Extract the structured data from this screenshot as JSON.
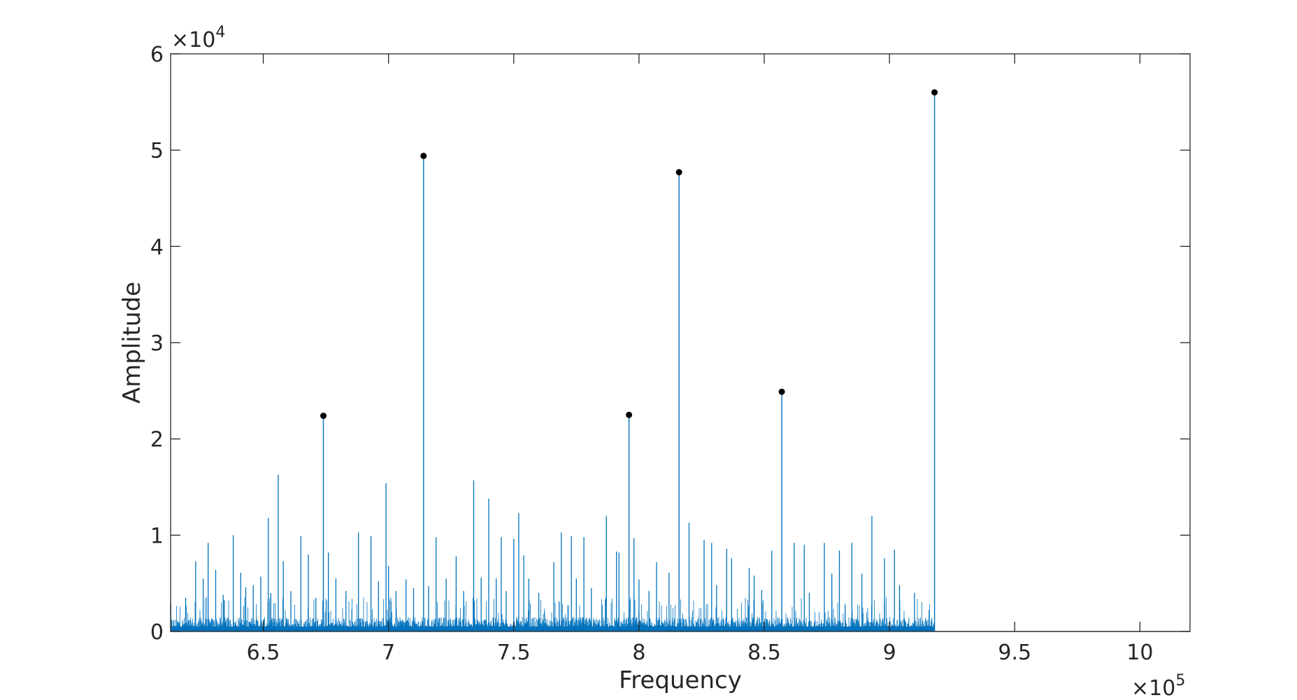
{
  "chart_data": {
    "type": "line",
    "title": "",
    "xlabel": "Frequency",
    "ylabel": "Amplitude",
    "x_exponent_label": "10",
    "x_exponent_power": "5",
    "y_exponent_label": "10",
    "y_exponent_power": "4",
    "xlim": [
      613000,
      1020000
    ],
    "ylim": [
      0,
      60000
    ],
    "x_tick_values": [
      650000,
      700000,
      750000,
      800000,
      850000,
      900000,
      950000,
      1000000
    ],
    "x_tick_labels": [
      "6.5",
      "7",
      "7.5",
      "8",
      "8.5",
      "9",
      "9.5",
      "10"
    ],
    "y_tick_values": [
      0,
      10000,
      20000,
      30000,
      40000,
      50000,
      60000
    ],
    "y_tick_labels": [
      "0",
      "1",
      "2",
      "3",
      "4",
      "5",
      "6"
    ],
    "grid": false,
    "line_color": "#0072BD",
    "marker_color": "#000000",
    "noise_floor": {
      "x_start": 613000,
      "x_end": 918000,
      "typical_amplitude": 1200,
      "typical_max": 3000
    },
    "minor_peaks": {
      "x": [
        619000,
        623000,
        626000,
        628000,
        631000,
        634000,
        638000,
        641000,
        643000,
        646000,
        649000,
        652000,
        653000,
        656000,
        658000,
        661000,
        665000,
        668000,
        671000,
        676000,
        679000,
        683000,
        688000,
        693000,
        696000,
        699000,
        700000,
        703000,
        707000,
        710000,
        716000,
        719000,
        723000,
        727000,
        730000,
        734000,
        737000,
        740000,
        743000,
        745000,
        747000,
        750000,
        752000,
        754000,
        756000,
        760000,
        766000,
        769000,
        773000,
        775000,
        778000,
        781000,
        787000,
        791000,
        792000,
        798000,
        800000,
        804000,
        807000,
        812000,
        820000,
        826000,
        829000,
        831000,
        835000,
        837000,
        844000,
        846000,
        849000,
        853000,
        862000,
        866000,
        868000,
        874000,
        877000,
        880000,
        885000,
        889000,
        893000,
        898000,
        902000,
        904000,
        910000
      ],
      "y": [
        3500,
        7300,
        5500,
        9200,
        6400,
        3800,
        10000,
        6100,
        4600,
        4800,
        5700,
        11800,
        4000,
        16300,
        7300,
        4200,
        9900,
        8000,
        3500,
        8200,
        5500,
        4200,
        10300,
        9900,
        5200,
        15400,
        6800,
        4200,
        5400,
        4500,
        4700,
        9800,
        5500,
        7800,
        4200,
        15700,
        5600,
        13800,
        5500,
        9800,
        4200,
        9600,
        12300,
        7900,
        5500,
        4000,
        7200,
        10300,
        9900,
        5500,
        9800,
        4500,
        12000,
        8300,
        8200,
        9700,
        5400,
        4200,
        7200,
        6100,
        11300,
        9500,
        9200,
        4800,
        8600,
        7600,
        6600,
        5800,
        4300,
        8400,
        9200,
        9000,
        4000,
        9200,
        6000,
        8400,
        9200,
        6000,
        12000,
        7600,
        8500,
        4800,
        4000
      ]
    },
    "major_peaks": {
      "x": [
        674000,
        714000,
        796000,
        816000,
        857000,
        918000
      ],
      "y": [
        22400,
        49400,
        22500,
        47700,
        24900,
        56000
      ]
    }
  }
}
